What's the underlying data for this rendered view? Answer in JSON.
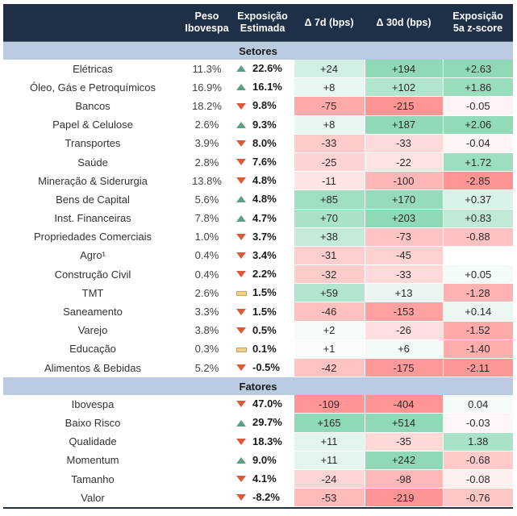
{
  "headers": {
    "label": "",
    "peso": [
      "Peso",
      "Ibovespa"
    ],
    "exposicao": [
      "Exposição",
      "Estimada"
    ],
    "d7": "Δ 7d (bps)",
    "d30": "Δ 30d (bps)",
    "zscore": [
      "Exposição",
      "5a z-score"
    ]
  },
  "colors": {
    "header_bg": "#1f2f47",
    "section_bg": "#b9cae1",
    "up": "#5f9e82",
    "down": "#d95a38",
    "flat": "#f0cf86",
    "heat_pos_strong": "#8fd9b6",
    "heat_neg_strong": "#ff9494"
  },
  "sections": [
    {
      "title": "Setores",
      "rows": [
        {
          "label": "Elétricas",
          "peso": "11.3%",
          "trend": "up",
          "exp": "22.6%",
          "d7": "+24",
          "d30": "+194",
          "z": "+2.63"
        },
        {
          "label": "Óleo, Gás e Petroquímicos",
          "peso": "16.9%",
          "trend": "up",
          "exp": "16.1%",
          "d7": "+8",
          "d30": "+102",
          "z": "+1.86"
        },
        {
          "label": "Bancos",
          "peso": "18.2%",
          "trend": "down",
          "exp": "9.8%",
          "d7": "-75",
          "d30": "-215",
          "z": "-0.05"
        },
        {
          "label": "Papel & Celulose",
          "peso": "2.6%",
          "trend": "up",
          "exp": "9.3%",
          "d7": "+8",
          "d30": "+187",
          "z": "+2.06"
        },
        {
          "label": "Transportes",
          "peso": "3.9%",
          "trend": "down",
          "exp": "8.0%",
          "d7": "-33",
          "d30": "-33",
          "z": "-0.04"
        },
        {
          "label": "Saúde",
          "peso": "2.8%",
          "trend": "down",
          "exp": "7.6%",
          "d7": "-25",
          "d30": "-22",
          "z": "+1.72"
        },
        {
          "label": "Mineração & Siderurgia",
          "peso": "13.8%",
          "trend": "down",
          "exp": "4.8%",
          "d7": "-11",
          "d30": "-100",
          "z": "-2.85"
        },
        {
          "label": "Bens de Capital",
          "peso": "5.6%",
          "trend": "up",
          "exp": "4.8%",
          "d7": "+85",
          "d30": "+170",
          "z": "+0.37"
        },
        {
          "label": "Inst. Financeiras",
          "peso": "7.8%",
          "trend": "up",
          "exp": "4.7%",
          "d7": "+70",
          "d30": "+203",
          "z": "+0.83"
        },
        {
          "label": "Propriedades Comerciais",
          "peso": "1.0%",
          "trend": "down",
          "exp": "3.7%",
          "d7": "+38",
          "d30": "-73",
          "z": "-0.88"
        },
        {
          "label": "Agro¹",
          "peso": "0.4%",
          "trend": "down",
          "exp": "3.4%",
          "d7": "-31",
          "d30": "-45",
          "z": ""
        },
        {
          "label": "Construção Civil",
          "peso": "0.4%",
          "trend": "down",
          "exp": "2.2%",
          "d7": "-32",
          "d30": "-33",
          "z": "+0.05"
        },
        {
          "label": "TMT",
          "peso": "2.6%",
          "trend": "flat",
          "exp": "1.5%",
          "d7": "+59",
          "d30": "+13",
          "z": "-1.28"
        },
        {
          "label": "Saneamento",
          "peso": "3.3%",
          "trend": "down",
          "exp": "1.5%",
          "d7": "-46",
          "d30": "-153",
          "z": "+0.14"
        },
        {
          "label": "Varejo",
          "peso": "3.8%",
          "trend": "down",
          "exp": "0.5%",
          "d7": "+2",
          "d30": "-26",
          "z": "-1.52"
        },
        {
          "label": "Educação",
          "peso": "0.3%",
          "trend": "flat",
          "exp": "0.1%",
          "d7": "+1",
          "d30": "+6",
          "z": "-1.40"
        },
        {
          "label": "Alimentos & Bebidas",
          "peso": "5.2%",
          "trend": "down",
          "exp": "-0.5%",
          "d7": "-42",
          "d30": "-175",
          "z": "-2.11"
        }
      ]
    },
    {
      "title": "Fatores",
      "rows": [
        {
          "label": "Ibovespa",
          "peso": "",
          "trend": "down",
          "exp": "47.0%",
          "d7": "-109",
          "d30": "-404",
          "z": "0.04"
        },
        {
          "label": "Baixo Risco",
          "peso": "",
          "trend": "up",
          "exp": "29.7%",
          "d7": "+165",
          "d30": "+514",
          "z": "-0.03"
        },
        {
          "label": "Qualidade",
          "peso": "",
          "trend": "down",
          "exp": "18.3%",
          "d7": "+11",
          "d30": "-35",
          "z": "1.38"
        },
        {
          "label": "Momentum",
          "peso": "",
          "trend": "up",
          "exp": "9.0%",
          "d7": "+11",
          "d30": "+242",
          "z": "-0.68"
        },
        {
          "label": "Tamanho",
          "peso": "",
          "trend": "down",
          "exp": "4.1%",
          "d7": "-24",
          "d30": "-98",
          "z": "-0.08"
        },
        {
          "label": "Valor",
          "peso": "",
          "trend": "down",
          "exp": "-8.2%",
          "d7": "-53",
          "d30": "-219",
          "z": "-0.76"
        }
      ]
    }
  ]
}
